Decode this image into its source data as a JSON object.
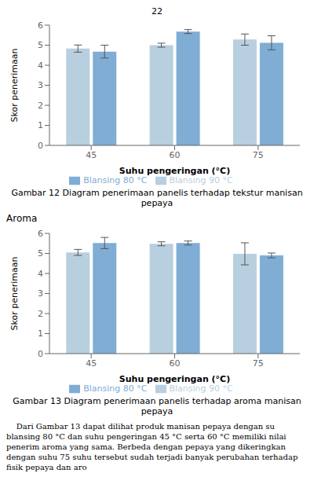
{
  "annotations": [
    "22",
    "Aroma",
    "    Dari Gambar 13 dapat dilihat produk manisan pepaya dengan su blansing 80 °C dan suhu pengeringan 45 °C serta 60 °C memiliki nilai penerim aroma yang sama. Berbeda dengan pepaya yang dikeringkan dengan suhu 75 suhu tersebut sudah terjadi banyak perubahan terhadap fisik pepaya dan aro"
  ],
  "chart_data": [
    {
      "type": "bar",
      "title": "Gambar 12 Diagram penerimaan panelis terhadap tekstur manisan pepaya",
      "xlabel": "Suhu pengeringan (°C)",
      "ylabel": "Skor penerimaan",
      "categories": [
        "45",
        "60",
        "75"
      ],
      "series": [
        {
          "name": "Blansing 90 °C",
          "color": "#b8cfe0",
          "values": [
            4.83,
            5.0,
            5.28
          ],
          "errors": [
            0.18,
            0.1,
            0.28
          ]
        },
        {
          "name": "Blansing 80 °C",
          "color": "#7fadd4",
          "values": [
            4.68,
            5.68,
            5.12
          ],
          "errors": [
            0.32,
            0.1,
            0.35
          ]
        }
      ],
      "ylim": [
        0,
        6
      ],
      "yticks": [
        0,
        1,
        2,
        3,
        4,
        5,
        6
      ],
      "grid": false,
      "legend": "bottom"
    },
    {
      "type": "bar",
      "title": "Gambar 13  Diagram penerimaan panelis terhadap aroma manisan pepaya",
      "xlabel": "Suhu pengeringan (°C)",
      "ylabel": "Skor penerimaan",
      "categories": [
        "45",
        "60",
        "75"
      ],
      "series": [
        {
          "name": "Blansing 90 °C",
          "color": "#b8cfe0",
          "values": [
            5.05,
            5.48,
            4.98
          ],
          "errors": [
            0.15,
            0.1,
            0.55
          ]
        },
        {
          "name": "Blansing 80 °C",
          "color": "#7fadd4",
          "values": [
            5.52,
            5.52,
            4.9
          ],
          "errors": [
            0.28,
            0.1,
            0.12
          ]
        }
      ],
      "ylim": [
        0,
        6
      ],
      "yticks": [
        0,
        1,
        2,
        3,
        4,
        5,
        6
      ],
      "grid": false,
      "legend": "bottom"
    }
  ]
}
